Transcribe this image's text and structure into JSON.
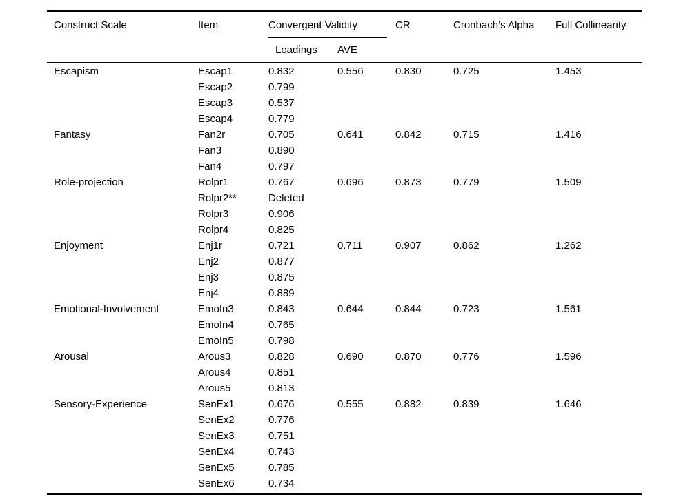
{
  "table": {
    "header": {
      "construct_scale": "Construct Scale",
      "item": "Item",
      "convergent_validity": "Convergent Validity",
      "loadings": "Loadings",
      "ave": "AVE",
      "cr": "CR",
      "cronbachs_alpha": "Cronbach’s Alpha",
      "full_collinearity": "Full Collinearity"
    },
    "constructs": [
      {
        "name": "Escapism",
        "ave": "0.556",
        "cr": "0.830",
        "cronbachs_alpha": "0.725",
        "full_collinearity": "1.453",
        "items": [
          {
            "item": "Escap1",
            "loading": "0.832"
          },
          {
            "item": "Escap2",
            "loading": "0.799"
          },
          {
            "item": "Escap3",
            "loading": "0.537"
          },
          {
            "item": "Escap4",
            "loading": "0.779"
          }
        ]
      },
      {
        "name": "Fantasy",
        "ave": "0.641",
        "cr": "0.842",
        "cronbachs_alpha": "0.715",
        "full_collinearity": "1.416",
        "items": [
          {
            "item": "Fan2r",
            "loading": "0.705"
          },
          {
            "item": "Fan3",
            "loading": "0.890"
          },
          {
            "item": "Fan4",
            "loading": "0.797"
          }
        ]
      },
      {
        "name": "Role-projection",
        "ave": "0.696",
        "cr": "0.873",
        "cronbachs_alpha": "0.779",
        "full_collinearity": "1.509",
        "items": [
          {
            "item": "Rolpr1",
            "loading": "0.767"
          },
          {
            "item": "Rolpr2**",
            "loading": "Deleted"
          },
          {
            "item": "Rolpr3",
            "loading": "0.906"
          },
          {
            "item": "Rolpr4",
            "loading": "0.825"
          }
        ]
      },
      {
        "name": "Enjoyment",
        "ave": "0.711",
        "cr": "0.907",
        "cronbachs_alpha": "0.862",
        "full_collinearity": "1.262",
        "items": [
          {
            "item": "Enj1r",
            "loading": "0.721"
          },
          {
            "item": "Enj2",
            "loading": "0.877"
          },
          {
            "item": "Enj3",
            "loading": "0.875"
          },
          {
            "item": "Enj4",
            "loading": "0.889"
          }
        ]
      },
      {
        "name": "Emotional-Involvement",
        "ave": "0.644",
        "cr": "0.844",
        "cronbachs_alpha": "0.723",
        "full_collinearity": "1.561",
        "items": [
          {
            "item": "EmoIn3",
            "loading": "0.843"
          },
          {
            "item": "EmoIn4",
            "loading": "0.765"
          },
          {
            "item": "EmoIn5",
            "loading": "0.798"
          }
        ]
      },
      {
        "name": "Arousal",
        "ave": "0.690",
        "cr": "0.870",
        "cronbachs_alpha": "0.776",
        "full_collinearity": "1.596",
        "items": [
          {
            "item": "Arous3",
            "loading": "0.828"
          },
          {
            "item": "Arous4",
            "loading": "0.851"
          },
          {
            "item": "Arous5",
            "loading": "0.813"
          }
        ]
      },
      {
        "name": "Sensory-Experience",
        "ave": "0.555",
        "cr": "0.882",
        "cronbachs_alpha": "0.839",
        "full_collinearity": "1.646",
        "items": [
          {
            "item": "SenEx1",
            "loading": "0.676"
          },
          {
            "item": "SenEx2",
            "loading": "0.776"
          },
          {
            "item": "SenEx3",
            "loading": "0.751"
          },
          {
            "item": "SenEx4",
            "loading": "0.743"
          },
          {
            "item": "SenEx5",
            "loading": "0.785"
          },
          {
            "item": "SenEx6",
            "loading": "0.734"
          }
        ]
      }
    ]
  }
}
